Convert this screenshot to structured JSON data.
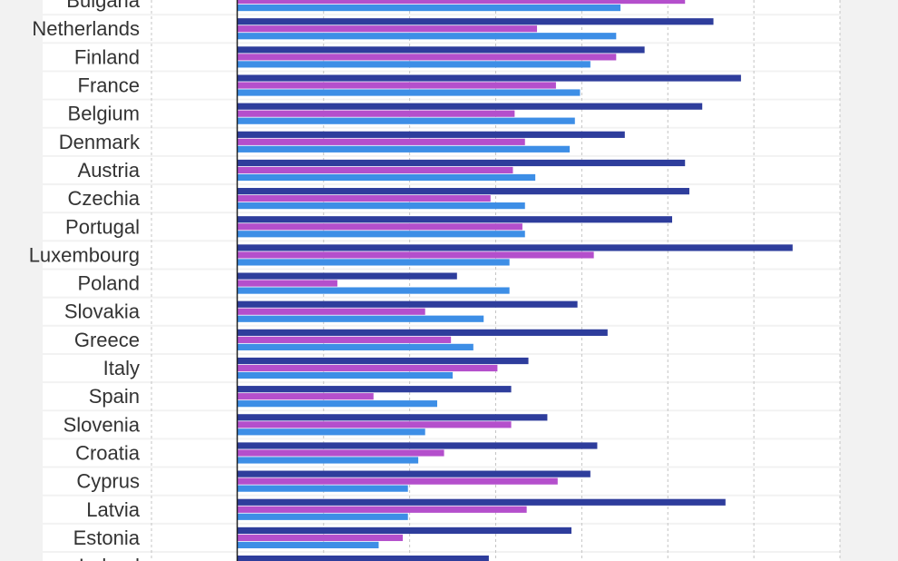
{
  "chart_data": {
    "type": "bar",
    "orientation": "horizontal",
    "grid": true,
    "xlim": [
      -100,
      700
    ],
    "categories": [
      "Bulgaria",
      "Netherlands",
      "Finland",
      "France",
      "Belgium",
      "Denmark",
      "Austria",
      "Czechia",
      "Portugal",
      "Luxembourg",
      "Poland",
      "Slovakia",
      "Greece",
      "Italy",
      "Spain",
      "Slovenia",
      "Croatia",
      "Cyprus",
      "Latvia",
      "Estonia",
      "Ireland"
    ],
    "series": [
      {
        "color": "#2e3d9c",
        "values": [
          null,
          553,
          473,
          585,
          540,
          450,
          520,
          525,
          505,
          645,
          255,
          395,
          430,
          338,
          318,
          360,
          418,
          410,
          567,
          388,
          292
        ]
      },
      {
        "color": "#b44fcc",
        "values": [
          520,
          348,
          440,
          370,
          322,
          334,
          320,
          294,
          331,
          414,
          116,
          218,
          248,
          302,
          158,
          318,
          240,
          372,
          336,
          192,
          null
        ]
      },
      {
        "color": "#3d8ee6",
        "values": [
          445,
          440,
          410,
          398,
          392,
          386,
          346,
          334,
          334,
          316,
          316,
          286,
          274,
          250,
          232,
          218,
          210,
          198,
          198,
          164,
          null
        ]
      }
    ]
  }
}
